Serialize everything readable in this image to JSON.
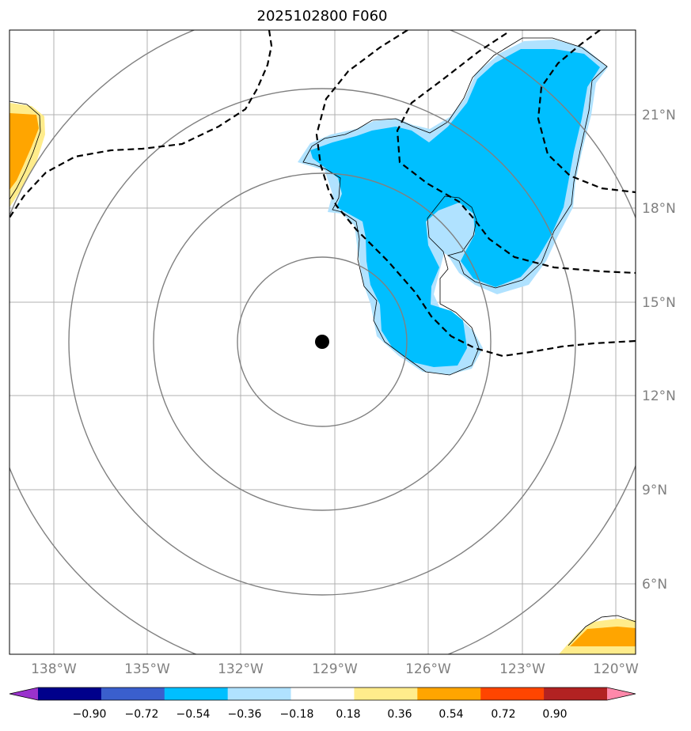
{
  "title": "2025102800 F060",
  "map": {
    "lon_labels": [
      "138°W",
      "135°W",
      "132°W",
      "129°W",
      "126°W",
      "123°W",
      "120°W"
    ],
    "lat_labels": [
      "21°N",
      "18°N",
      "15°N",
      "12°N",
      "9°N",
      "6°N"
    ],
    "center_marker": {
      "lon": -129.4,
      "lat": 13.7
    }
  },
  "colorbar": {
    "tick_labels": [
      "−0.90",
      "−0.72",
      "−0.54",
      "−0.36",
      "−0.18",
      "0.18",
      "0.36",
      "0.54",
      "0.72",
      "0.90"
    ],
    "colors": [
      "#9932CC",
      "#00008B",
      "#3A5FCD",
      "#00BFFF",
      "#B0E2FF",
      "#FFFFFF",
      "#FFEC8B",
      "#FFA500",
      "#FF4500",
      "#B22222",
      "#FF88AA"
    ]
  },
  "colors": {
    "grid": "#b0b0b0",
    "range_rings": "#808080",
    "contour": "#000000",
    "neg_fill": "#00BFFF",
    "neg_fill_light": "#B0E2FF",
    "pos_fill": "#FFA500",
    "pos_fill_light": "#FFEC8B"
  }
}
